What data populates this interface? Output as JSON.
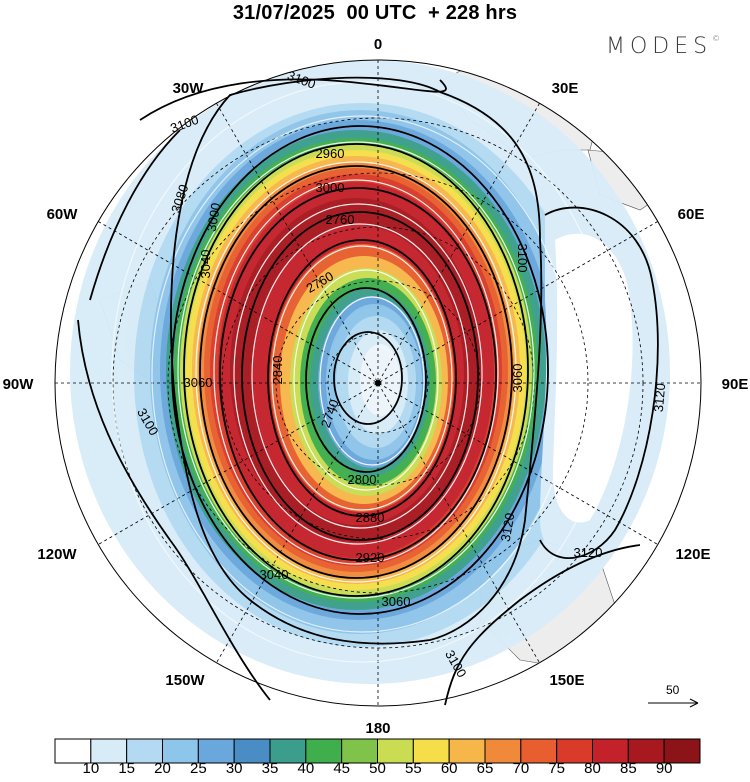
{
  "title": "31/07/2025  00 UTC  + 228 hrs",
  "brand": {
    "text": "MODES",
    "mark": "©"
  },
  "longitude_labels": [
    "0",
    "30E",
    "60E",
    "90E",
    "120E",
    "150E",
    "180",
    "150W",
    "120W",
    "90W",
    "60W",
    "30W"
  ],
  "contour_labels": [
    {
      "text": "3100",
      "angle": 20
    },
    {
      "text": "3100",
      "angle": -20
    },
    {
      "text": "3080",
      "angle": -72
    },
    {
      "text": "3060",
      "angle": 0
    },
    {
      "text": "2960",
      "angle": 0
    },
    {
      "text": "3000",
      "angle": 0
    },
    {
      "text": "3000",
      "angle": -90
    },
    {
      "text": "3040",
      "angle": -90
    },
    {
      "text": "2760",
      "angle": 0
    },
    {
      "text": "2760",
      "angle": -30
    },
    {
      "text": "2740",
      "angle": -70
    },
    {
      "text": "2800",
      "angle": 0
    },
    {
      "text": "2840",
      "angle": -90
    },
    {
      "text": "2880",
      "angle": 0
    },
    {
      "text": "2920",
      "angle": 0
    },
    {
      "text": "3040",
      "angle": 0
    },
    {
      "text": "3060",
      "angle": 0
    },
    {
      "text": "3060",
      "angle": -90
    },
    {
      "text": "3120",
      "angle": -80
    },
    {
      "text": "3120",
      "angle": 0
    },
    {
      "text": "3120",
      "angle": -85
    },
    {
      "text": "3100",
      "angle": 60
    },
    {
      "text": "3100",
      "angle": 60
    },
    {
      "text": "3100",
      "angle": -90
    }
  ],
  "vector_reference": {
    "label": "50"
  },
  "colorbar": {
    "colors": [
      "#ffffff",
      "#d8ecf8",
      "#b3daf2",
      "#8ec5ea",
      "#6aa7dc",
      "#4a8cc4",
      "#3b9e8c",
      "#3fae4c",
      "#7fc34a",
      "#c9dc52",
      "#f6de4a",
      "#f6b64a",
      "#f08a3a",
      "#e85e2e",
      "#d93a2a",
      "#c4222a",
      "#a8181f",
      "#8c1418"
    ],
    "labels": [
      "10",
      "15",
      "20",
      "25",
      "30",
      "35",
      "40",
      "45",
      "50",
      "55",
      "60",
      "65",
      "70",
      "75",
      "80",
      "85",
      "90"
    ]
  }
}
